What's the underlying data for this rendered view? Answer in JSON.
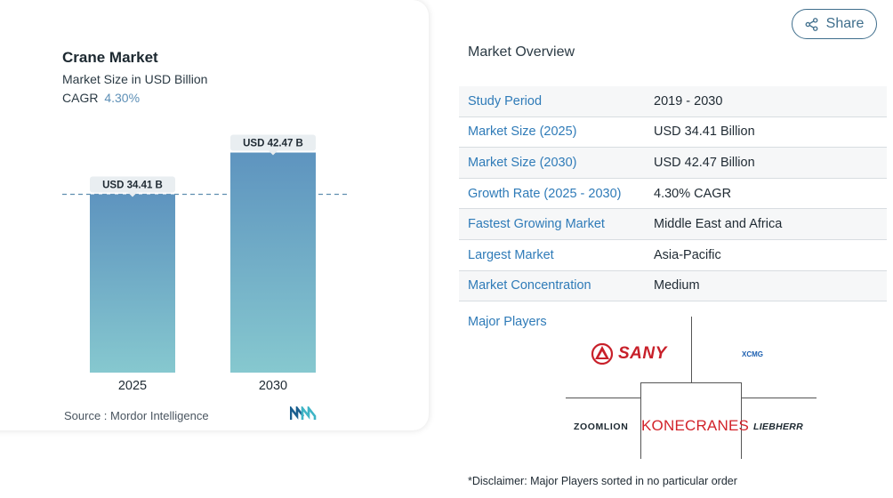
{
  "chart_data": {
    "type": "bar",
    "title": "Crane Market",
    "subtitle": "Market Size in USD Billion",
    "cagr_label": "CAGR",
    "cagr_value": "4.30%",
    "categories": [
      "2025",
      "2030"
    ],
    "values": [
      34.41,
      42.47
    ],
    "data_labels": [
      "USD 34.41 B",
      "USD 42.47 B"
    ],
    "colors": {
      "bar_top": "#5e94bf",
      "bar_bottom": "#86c8cf",
      "label_bg": "#e9eef1",
      "reference_line": "#5f8fb0"
    },
    "ylim": [
      0,
      52
    ],
    "reference_line_at": 34.41,
    "grid": false,
    "legend": "none"
  },
  "source": {
    "prefix": "Source :",
    "name": "Mordor Intelligence",
    "logo_icon": "mordor-intelligence-logo"
  },
  "share": {
    "label": "Share",
    "icon": "share-icon"
  },
  "overview": {
    "title": "Market Overview",
    "rows": [
      {
        "label": "Study Period",
        "value": "2019 - 2030"
      },
      {
        "label": "Market Size (2025)",
        "value": "USD 34.41 Billion"
      },
      {
        "label": "Market Size (2030)",
        "value": "USD 42.47 Billion"
      },
      {
        "label": "Growth Rate (2025 - 2030)",
        "value": "4.30% CAGR"
      },
      {
        "label": "Fastest Growing Market",
        "value": "Middle East and Africa"
      },
      {
        "label": "Largest Market",
        "value": "Asia-Pacific"
      },
      {
        "label": "Market Concentration",
        "value": "Medium"
      }
    ]
  },
  "players": {
    "label": "Major Players",
    "logos": {
      "sany": "SANY",
      "xcmg": "XCMG",
      "zoomlion": "ZOOMLION",
      "konecranes": "KONECRANES",
      "liebherr": "LIEBHERR"
    }
  },
  "disclaimer": "*Disclaimer: Major Players sorted in no particular order"
}
